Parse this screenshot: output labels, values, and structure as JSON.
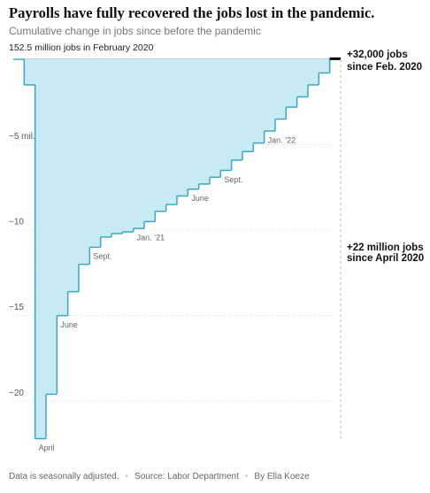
{
  "chart_data": {
    "type": "step-area",
    "title": "Payrolls have fully recovered the jobs lost in the pandemic.",
    "subtitle": "Cumulative change in jobs since before the pandemic",
    "categories": [
      null,
      null,
      "April",
      null,
      "June",
      null,
      null,
      "Sept.",
      null,
      null,
      null,
      "Jan. ’21",
      null,
      null,
      null,
      null,
      "June",
      null,
      null,
      "Sept.",
      null,
      null,
      null,
      "Jan. ’22",
      null,
      null,
      null,
      null,
      null,
      null
    ],
    "values": [
      0,
      -1.5,
      -22.2,
      -19.6,
      -15.0,
      -13.6,
      -12.0,
      -11.0,
      -10.4,
      -10.2,
      -10.1,
      -9.9,
      -9.5,
      -8.9,
      -8.5,
      -8.0,
      -7.6,
      -7.3,
      -6.9,
      -6.5,
      -5.9,
      -5.4,
      -4.9,
      -4.2,
      -3.5,
      -2.8,
      -2.2,
      -1.5,
      -0.8,
      0.032
    ],
    "color": "#3aa8c5",
    "fill": "#c8eaf2",
    "last_color": "#000000",
    "ylim": [
      -22.5,
      0.3
    ],
    "yticks": [
      {
        "value": 0,
        "label": "152.5 million jobs in February 2020"
      },
      {
        "value": -5,
        "label": "−5 mil."
      },
      {
        "value": -10,
        "label": "−10"
      },
      {
        "value": -15,
        "label": "−15"
      },
      {
        "value": -20,
        "label": "−20"
      }
    ],
    "grid": true,
    "annotations": [
      [
        "+32,000 jobs",
        "since Feb. 2020"
      ],
      [
        "+22 million jobs",
        "since April 2020"
      ]
    ],
    "footer": [
      "Data is seasonally adjusted.",
      "Source: Labor Department",
      "By Ella Koeze"
    ]
  }
}
